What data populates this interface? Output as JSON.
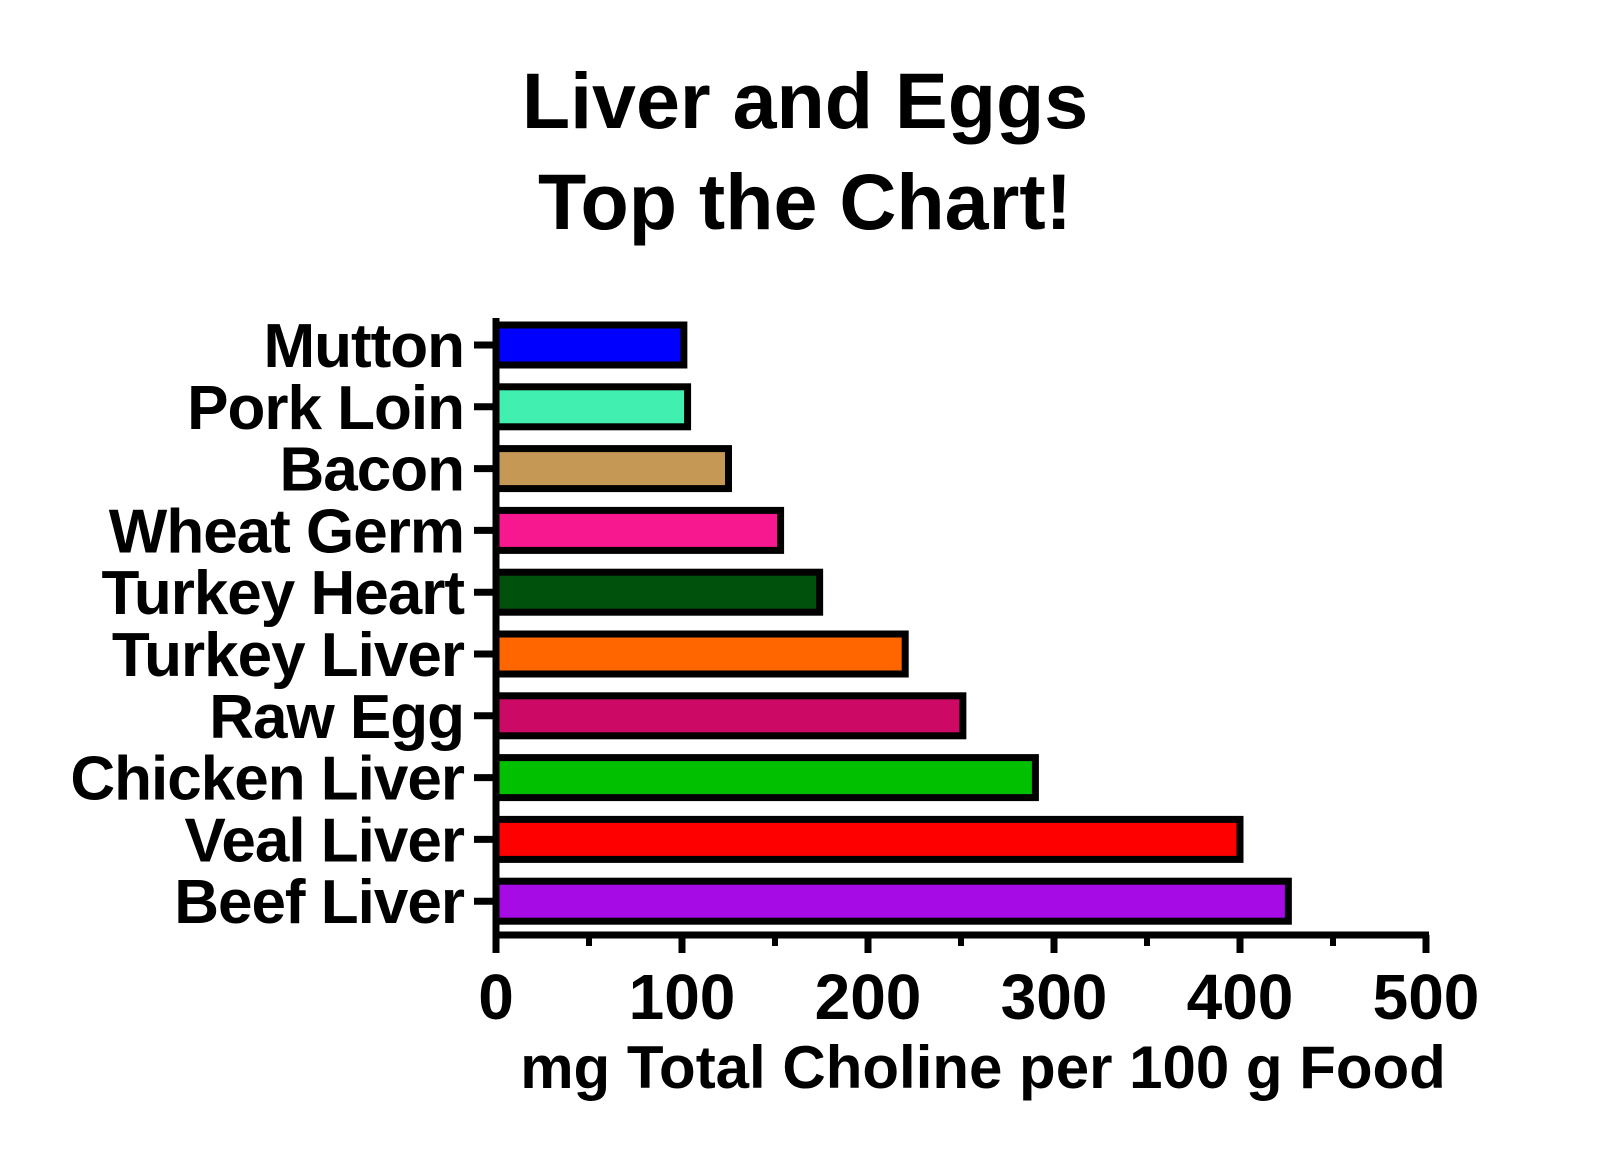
{
  "chart_data": {
    "type": "bar",
    "orientation": "horizontal",
    "title_lines": [
      "Liver and Eggs",
      "Top the  Chart!"
    ],
    "xlabel": "mg Total Choline per 100 g Food",
    "ylabel": "",
    "xlim": [
      0,
      500
    ],
    "xticks": [
      0,
      100,
      200,
      300,
      400,
      500
    ],
    "xtick_labels": [
      "0",
      "100",
      "200",
      "300",
      "400",
      "500"
    ],
    "minor_xticks": [
      50,
      150,
      250,
      350,
      450
    ],
    "grid": false,
    "legend": "none",
    "categories": [
      "Mutton",
      "Pork Loin",
      "Bacon",
      "Wheat Germ",
      "Turkey Heart",
      "Turkey Liver",
      "Raw Egg",
      "Chicken Liver",
      "Veal Liver",
      "Beef Liver"
    ],
    "values": [
      101,
      103,
      125,
      153,
      174,
      220,
      251,
      290,
      400,
      426
    ],
    "colors": [
      "#0000ff",
      "#41f0b0",
      "#c69855",
      "#f7178e",
      "#00510c",
      "#ff6600",
      "#cc0a66",
      "#00c000",
      "#ff0000",
      "#a60be6"
    ]
  }
}
